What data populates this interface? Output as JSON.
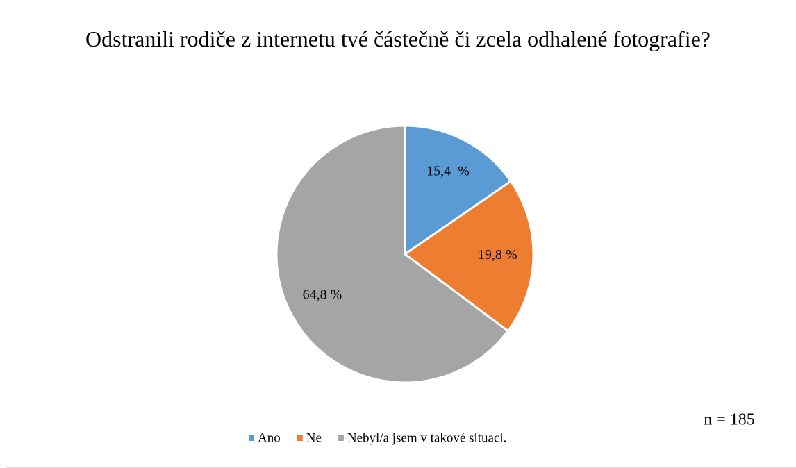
{
  "chart_data": {
    "type": "pie",
    "title": "Odstranili rodiče z internetu tvé částečně či zcela odhalené fotografie?",
    "categories": [
      "Ano",
      "Ne",
      "Nebyl/a jsem v takové situaci."
    ],
    "values": [
      15.4,
      19.8,
      64.8
    ],
    "value_labels": [
      "15,4  %",
      "19,8 %",
      "64,8 %"
    ],
    "colors": [
      "#5b9bd5",
      "#ed7d31",
      "#a5a5a5"
    ],
    "annotation": "n = 185",
    "legend": "bottom"
  }
}
